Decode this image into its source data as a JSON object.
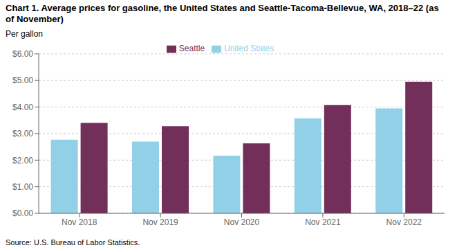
{
  "chart_data": {
    "type": "bar",
    "title": "Chart 1. Average prices for gasoline, the United States and Seattle-Tacoma-Bellevue, WA, 2018–22 (as of November)",
    "y_label": "Per gallon",
    "annotations": [
      "Source: U.S. Bureau of Labor Statistics."
    ],
    "categories": [
      "Nov 2018",
      "Nov 2019",
      "Nov 2020",
      "Nov 2021",
      "Nov 2022"
    ],
    "series": [
      {
        "name": "United States",
        "color": "#92D0E8",
        "values": [
          2.77,
          2.7,
          2.17,
          3.57,
          3.95
        ]
      },
      {
        "name": "Seattle",
        "color": "#722F5A",
        "values": [
          3.4,
          3.28,
          2.63,
          4.07,
          4.95
        ]
      }
    ],
    "ylim": [
      0,
      6.0
    ],
    "yticks": [
      {
        "value": 0.0,
        "label": "$0.00"
      },
      {
        "value": 1.0,
        "label": "$1.00"
      },
      {
        "value": 2.0,
        "label": "$2.00"
      },
      {
        "value": 3.0,
        "label": "$3.00"
      },
      {
        "value": 4.0,
        "label": "$4.00"
      },
      {
        "value": 5.0,
        "label": "$5.00"
      },
      {
        "value": 6.0,
        "label": "$6.00"
      }
    ],
    "grid": true,
    "legend": "top"
  }
}
